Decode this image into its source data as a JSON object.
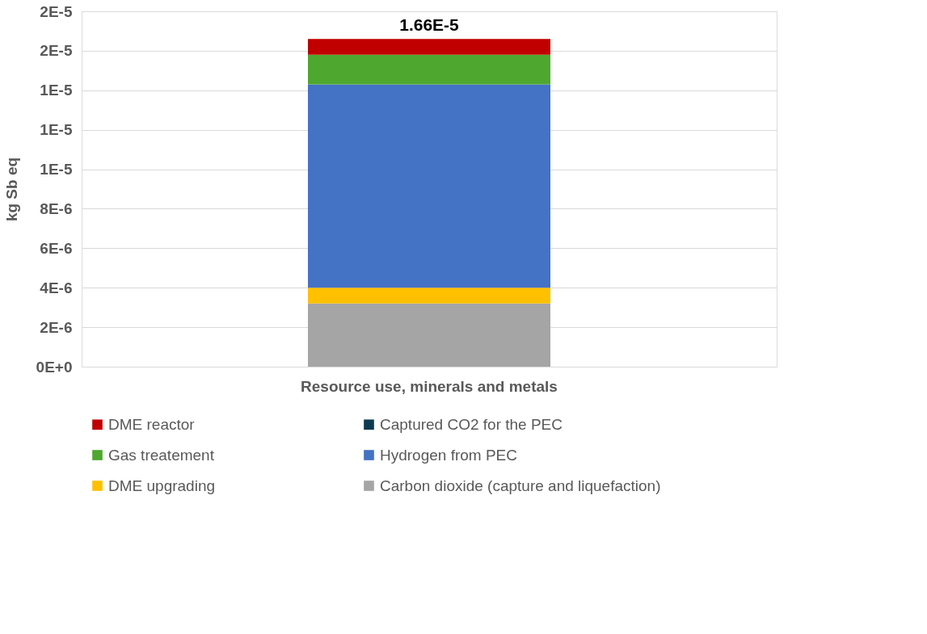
{
  "chart_data": {
    "type": "bar",
    "stacked": true,
    "ylabel": "kg Sb eq",
    "categories": [
      "Resource use, minerals and metals"
    ],
    "series": [
      {
        "name": "Carbon dioxide (capture and liquefaction)",
        "color": "#a5a5a5",
        "values": [
          3.2e-06
        ]
      },
      {
        "name": "DME upgrading",
        "color": "#ffc000",
        "values": [
          8e-07
        ]
      },
      {
        "name": "Hydrogen from PEC",
        "color": "#4472c4",
        "values": [
          1.03e-05
        ]
      },
      {
        "name": "Gas treatement",
        "color": "#4ea72e",
        "values": [
          1.5e-06
        ]
      },
      {
        "name": "Captured CO2  for the PEC",
        "color": "#0e3a4f",
        "values": [
          0
        ]
      },
      {
        "name": "DME reactor",
        "color": "#c00000",
        "values": [
          8e-07
        ]
      }
    ],
    "totals": [
      "1.66E-5"
    ],
    "ylim": [
      0,
      1.8e-05
    ],
    "yticks": [
      {
        "value": 0,
        "label": "0E+0"
      },
      {
        "value": 2e-06,
        "label": "2E-6"
      },
      {
        "value": 4e-06,
        "label": "4E-6"
      },
      {
        "value": 6e-06,
        "label": "6E-6"
      },
      {
        "value": 8e-06,
        "label": "8E-6"
      },
      {
        "value": 1e-05,
        "label": "1E-5"
      },
      {
        "value": 1.2e-05,
        "label": "1E-5"
      },
      {
        "value": 1.4e-05,
        "label": "1E-5"
      },
      {
        "value": 1.6e-05,
        "label": "2E-5"
      },
      {
        "value": 1.8e-05,
        "label": "2E-5"
      }
    ],
    "grid": "y",
    "legend": "bottom"
  }
}
